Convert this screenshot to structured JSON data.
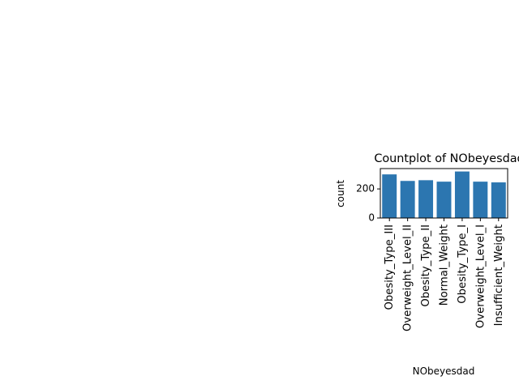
{
  "chart_data": {
    "type": "bar",
    "title": "Countplot of NObeyesdad",
    "xlabel": "NObeyesdad",
    "ylabel": "count",
    "categories": [
      "Obesity_Type_III",
      "Overweight_Level_II",
      "Obesity_Type_II",
      "Normal_Weight",
      "Obesity_Type_I",
      "Overweight_Level_I",
      "Insufficient_Weight"
    ],
    "values": [
      300,
      255,
      260,
      250,
      320,
      250,
      245
    ],
    "yticks": [
      "0",
      "200"
    ],
    "ylim": [
      0,
      340
    ],
    "grid": false,
    "bar_color": "#2c76b0"
  }
}
